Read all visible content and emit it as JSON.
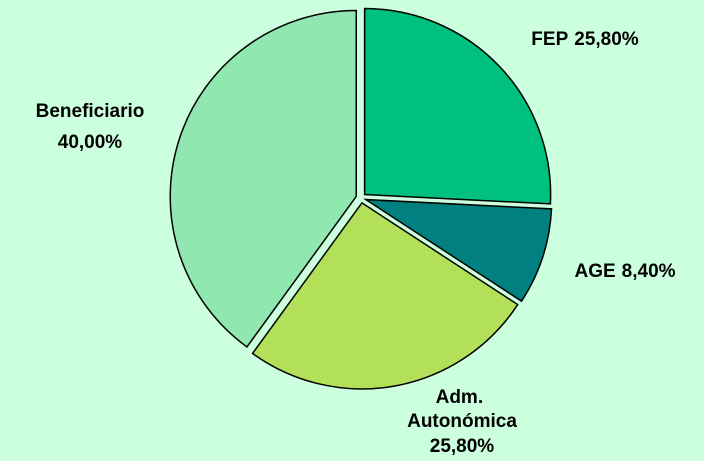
{
  "chart_data": {
    "type": "pie",
    "categories": [
      "FEP",
      "AGE",
      "Adm. Autonómica",
      "Beneficiario"
    ],
    "values": [
      25.8,
      8.4,
      25.8,
      40.0
    ],
    "value_labels": [
      "25,80%",
      "8,40%",
      "25,80%",
      "40,00%"
    ],
    "colors": [
      "#00c080",
      "#008080",
      "#b2e058",
      "#90e8b0"
    ]
  }
}
